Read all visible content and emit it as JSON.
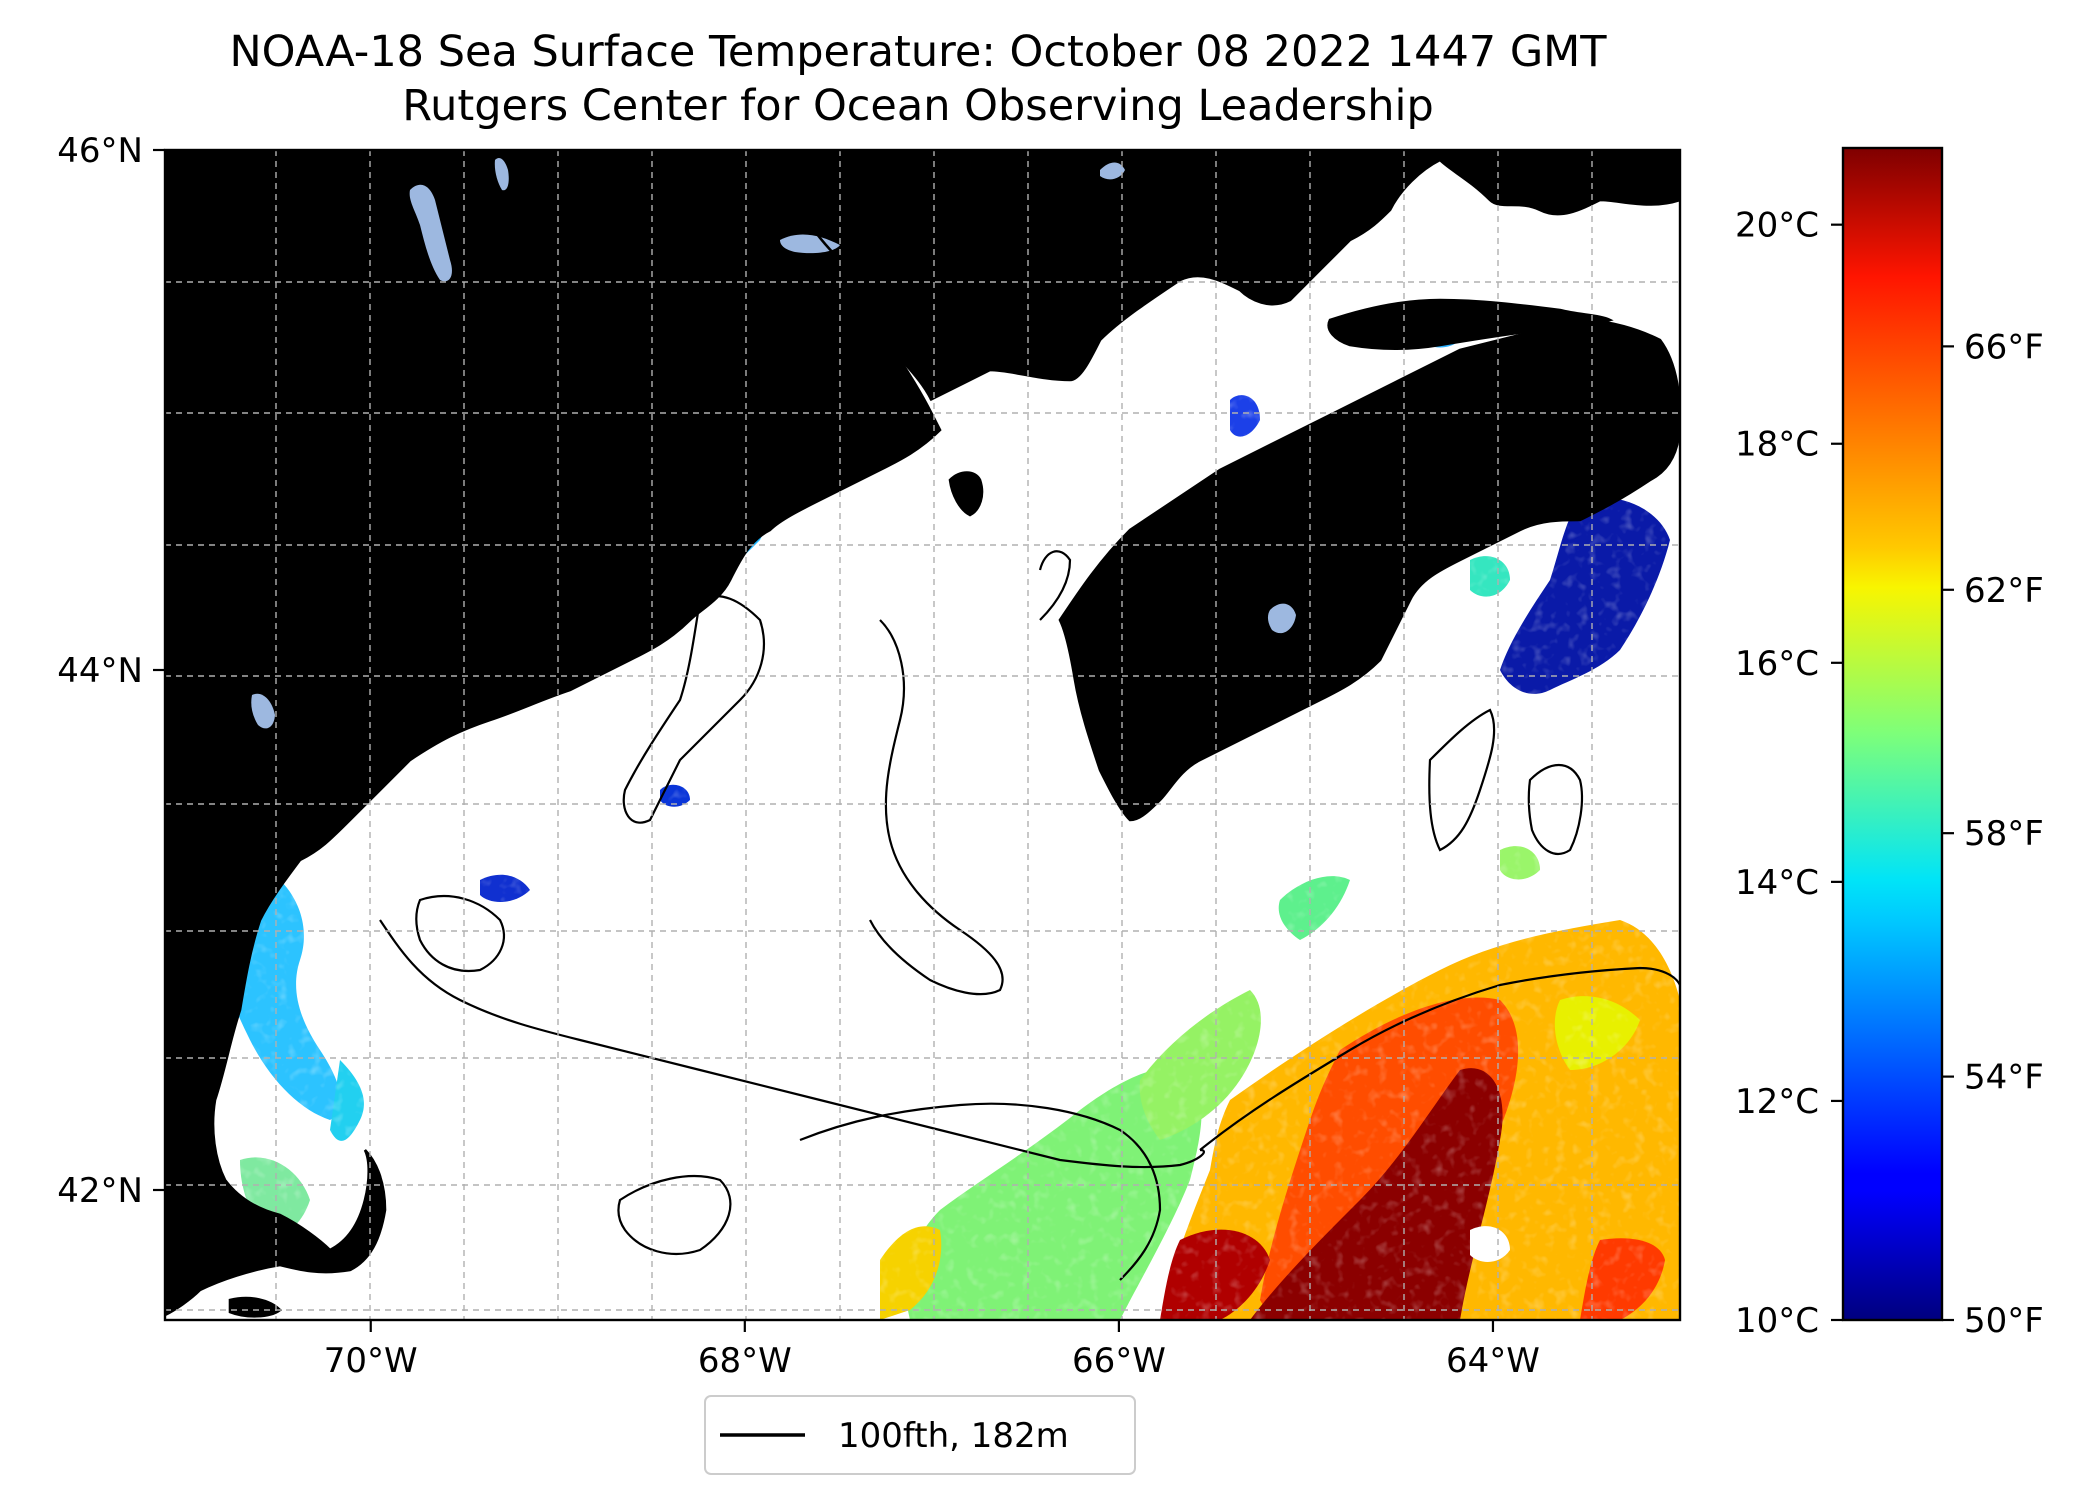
{
  "title": {
    "line1": "NOAA-18 Sea Surface Temperature: October 08 2022 1447 GMT",
    "line2": "Rutgers Center for Ocean Observing Leadership"
  },
  "map": {
    "lon_range": [
      -71.1,
      -63.0
    ],
    "lat_range": [
      41.5,
      46.0
    ],
    "x_ticks": [
      {
        "label": "70°W",
        "value": -70
      },
      {
        "label": "68°W",
        "value": -68
      },
      {
        "label": "66°W",
        "value": -66
      },
      {
        "label": "64°W",
        "value": -64
      }
    ],
    "y_ticks": [
      {
        "label": "46°N",
        "value": 46
      },
      {
        "label": "44°N",
        "value": 44
      },
      {
        "label": "42°N",
        "value": 42
      }
    ],
    "grid": true,
    "land_color": "#d2b48c",
    "lake_color": "#9db8e0",
    "coast_color": "#000000"
  },
  "legend": {
    "label": "100fth, 182m",
    "line_color": "#000000",
    "placement": "below-map"
  },
  "colorbar": {
    "colormap": "jet",
    "range_c": [
      10,
      20.7
    ],
    "celsius_ticks": [
      {
        "label": "10°C",
        "value": 10
      },
      {
        "label": "12°C",
        "value": 12
      },
      {
        "label": "14°C",
        "value": 14
      },
      {
        "label": "16°C",
        "value": 16
      },
      {
        "label": "18°C",
        "value": 18
      },
      {
        "label": "20°C",
        "value": 20
      }
    ],
    "fahrenheit_ticks": [
      {
        "label": "50°F",
        "value": 50
      },
      {
        "label": "54°F",
        "value": 54
      },
      {
        "label": "58°F",
        "value": 58
      },
      {
        "label": "62°F",
        "value": 62
      },
      {
        "label": "66°F",
        "value": 66
      }
    ]
  }
}
